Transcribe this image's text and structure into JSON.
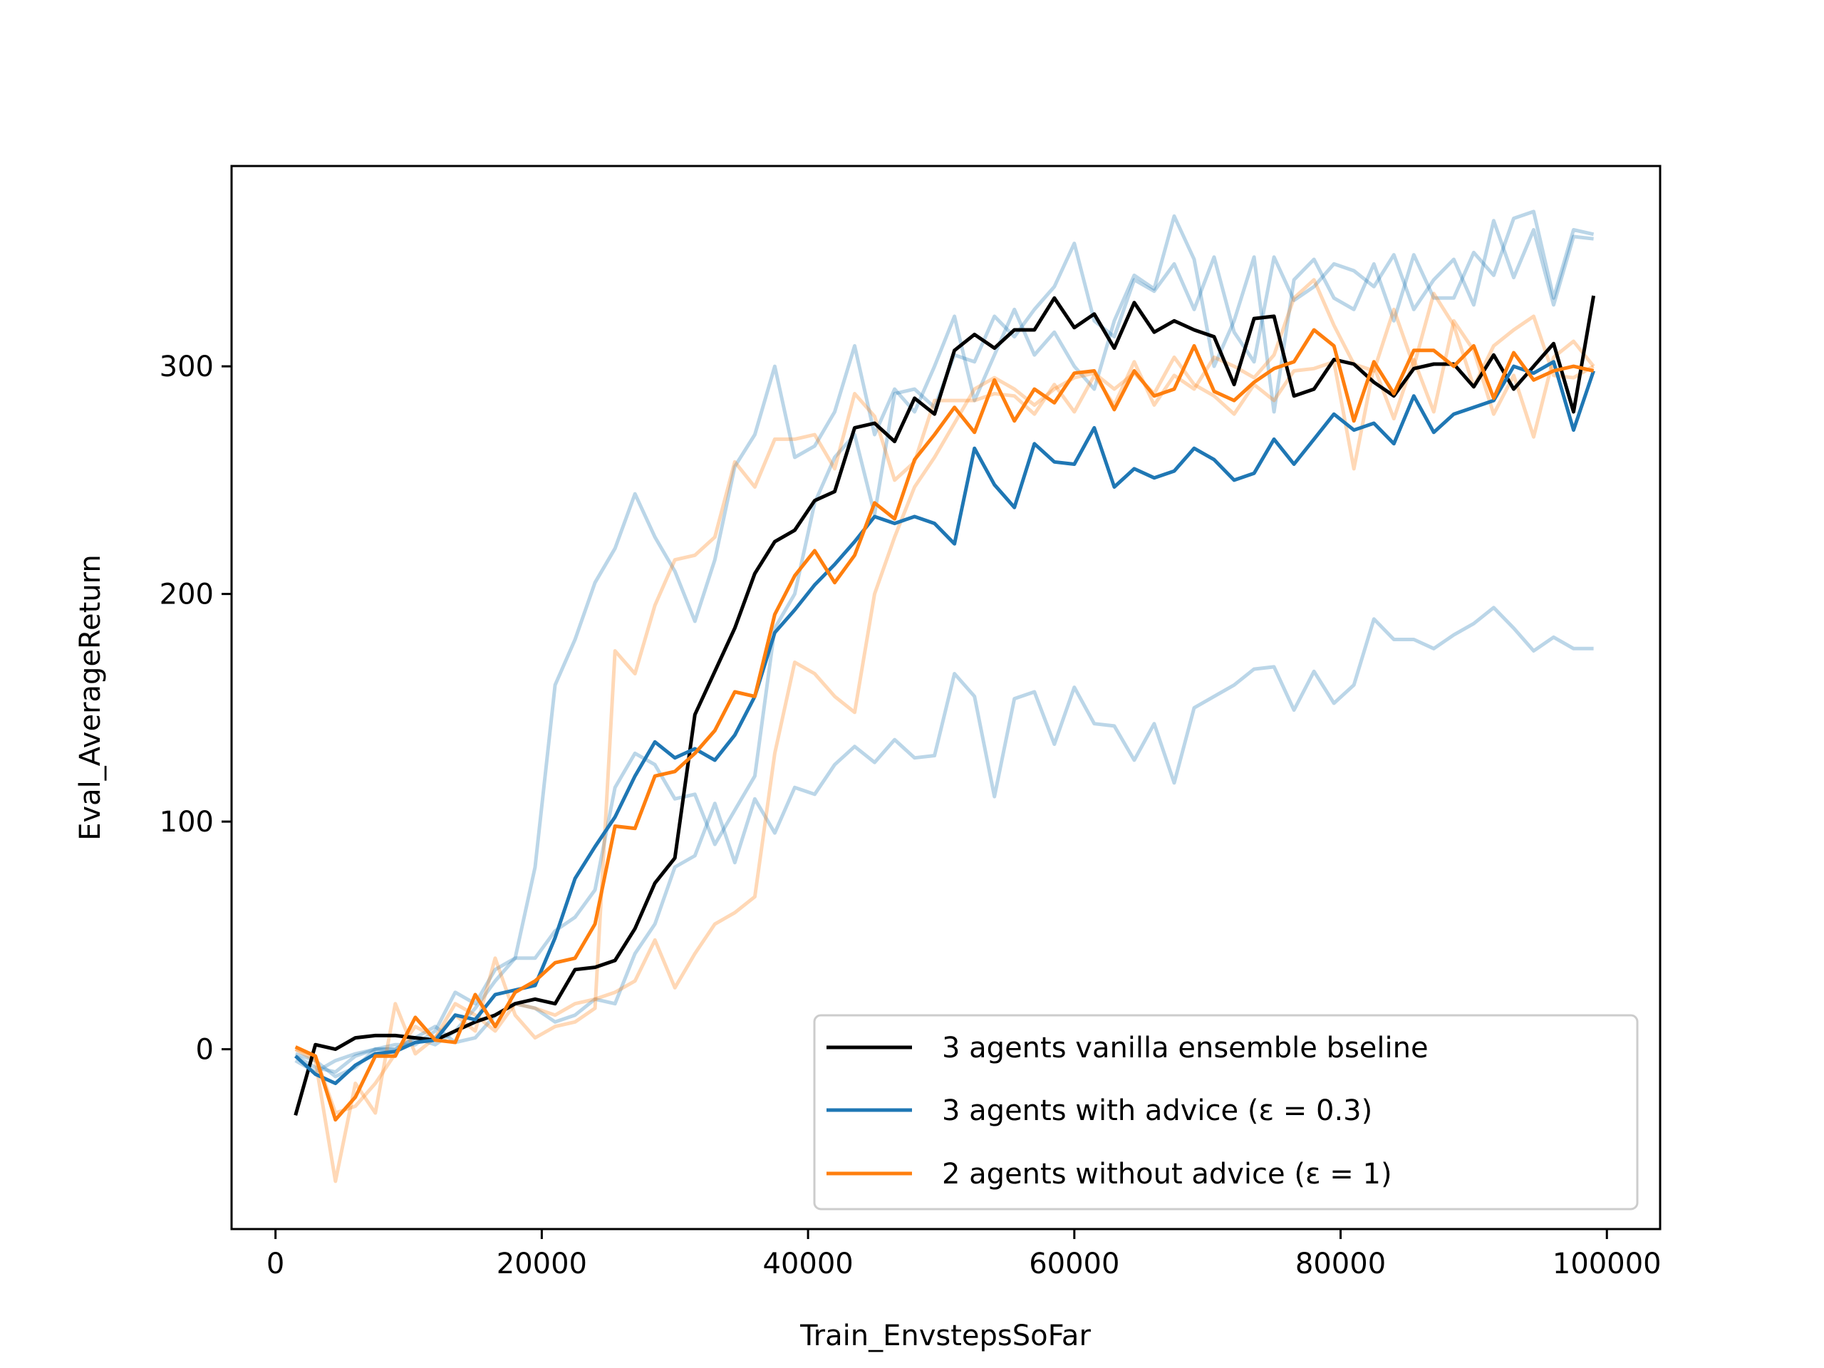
{
  "chart_data": {
    "type": "line",
    "title": "",
    "xlabel": "Train_EnvstepsSoFar",
    "ylabel": "Eval_AverageReturn",
    "xlim": [
      -3300,
      104000
    ],
    "ylim": [
      -79,
      388
    ],
    "xticks": [
      0,
      20000,
      40000,
      60000,
      80000,
      100000
    ],
    "xtick_labels": [
      "0",
      "20000",
      "40000",
      "60000",
      "80000",
      "100000"
    ],
    "yticks": [
      0,
      100,
      200,
      300
    ],
    "ytick_labels": [
      "0",
      "100",
      "200",
      "300"
    ],
    "grid": false,
    "legend_position": "lower-right",
    "x": [
      1500,
      3000,
      4500,
      6000,
      7500,
      9000,
      10500,
      12000,
      13500,
      15000,
      16500,
      18000,
      19500,
      21000,
      22500,
      24000,
      25500,
      27000,
      28500,
      30000,
      31500,
      33000,
      34500,
      36000,
      37500,
      39000,
      40500,
      42000,
      43500,
      45000,
      46500,
      48000,
      49500,
      51000,
      52500,
      54000,
      55500,
      57000,
      58500,
      60000,
      61500,
      63000,
      64500,
      66000,
      67500,
      69000,
      70500,
      72000,
      73500,
      75000,
      76500,
      78000,
      79500,
      81000,
      82500,
      84000,
      85500,
      87000,
      88500,
      90000,
      91500,
      93000,
      94500,
      96000,
      97500,
      99000
    ],
    "series": [
      {
        "name": "3 agents vanilla ensemble bseline",
        "color": "#000000",
        "values": [
          -29,
          2,
          0,
          5,
          6,
          6,
          5,
          4,
          8,
          12,
          15,
          20,
          22,
          20,
          35,
          36,
          39,
          53,
          73,
          84,
          147,
          166,
          185,
          209,
          223,
          228,
          241,
          245,
          273,
          275,
          267,
          286,
          279,
          307,
          314,
          308,
          316,
          316,
          330,
          317,
          323,
          308,
          328,
          315,
          320,
          316,
          313,
          292,
          321,
          322,
          287,
          290,
          303,
          301,
          293,
          287,
          299,
          301,
          301,
          291,
          305,
          290,
          300,
          310,
          280,
          331
        ]
      },
      {
        "name": "3 agents with advice (ε = 0.3)",
        "color": "#1f77b4",
        "values": [
          -3,
          -11,
          -15,
          -7,
          -2,
          -1,
          3,
          4,
          15,
          13,
          24,
          26,
          28,
          49,
          75,
          89,
          102,
          120,
          135,
          128,
          132,
          127,
          138,
          155,
          183,
          193,
          204,
          213,
          223,
          234,
          231,
          234,
          231,
          222,
          264,
          248,
          238,
          266,
          258,
          257,
          273,
          247,
          255,
          251,
          254,
          264,
          259,
          250,
          253,
          268,
          257,
          268,
          279,
          272,
          275,
          266,
          287,
          271,
          279,
          282,
          285,
          300,
          297,
          302,
          272,
          298
        ]
      },
      {
        "name": "2 agents without advice (ε = 1)",
        "color": "#ff7f0e",
        "values": [
          1,
          -3,
          -31,
          -21,
          -3,
          -3,
          14,
          4,
          3,
          24,
          10,
          25,
          30,
          38,
          40,
          55,
          98,
          97,
          120,
          122,
          130,
          140,
          157,
          155,
          191,
          208,
          219,
          205,
          217,
          240,
          233,
          259,
          270,
          282,
          271,
          294,
          276,
          290,
          284,
          297,
          298,
          281,
          298,
          287,
          290,
          309,
          289,
          285,
          293,
          299,
          302,
          316,
          309,
          276,
          302,
          288,
          307,
          307,
          300,
          309,
          286,
          306,
          294,
          298,
          300,
          298
        ]
      },
      {
        "name": "",
        "color": "#1f77b4",
        "faded": true,
        "values": [
          -5,
          -10,
          -5,
          -2,
          0,
          0,
          5,
          2,
          8,
          18,
          30,
          40,
          80,
          160,
          180,
          205,
          220,
          244,
          225,
          210,
          188,
          215,
          256,
          270,
          300,
          260,
          265,
          280,
          309,
          270,
          290,
          280,
          300,
          322,
          285,
          305,
          325,
          305,
          315,
          300,
          290,
          320,
          340,
          334,
          366,
          347,
          300,
          320,
          348,
          280,
          338,
          347,
          330,
          325,
          345,
          320,
          349,
          330,
          330,
          350,
          340,
          365,
          368,
          330,
          360,
          358
        ]
      },
      {
        "name": "",
        "color": "#1f77b4",
        "faded": true,
        "values": [
          -2,
          -5,
          -12,
          -8,
          0,
          2,
          2,
          8,
          25,
          20,
          35,
          40,
          40,
          52,
          58,
          70,
          115,
          130,
          125,
          110,
          112,
          90,
          105,
          120,
          185,
          200,
          240,
          260,
          270,
          235,
          288,
          290,
          282,
          305,
          302,
          322,
          313,
          325,
          335,
          354,
          320,
          313,
          338,
          333,
          345,
          325,
          348,
          315,
          302,
          348,
          329,
          335,
          345,
          342,
          335,
          349,
          325,
          338,
          347,
          327,
          364,
          339,
          360,
          327,
          357,
          356
        ]
      },
      {
        "name": "",
        "color": "#1f77b4",
        "faded": true,
        "values": [
          -3,
          -8,
          -10,
          -3,
          0,
          0,
          5,
          10,
          3,
          5,
          15,
          20,
          18,
          12,
          15,
          22,
          20,
          42,
          55,
          80,
          85,
          108,
          82,
          110,
          95,
          115,
          112,
          125,
          133,
          126,
          136,
          128,
          129,
          165,
          155,
          111,
          154,
          157,
          134,
          159,
          143,
          142,
          127,
          143,
          117,
          150,
          155,
          160,
          167,
          168,
          149,
          166,
          152,
          160,
          189,
          180,
          180,
          176,
          182,
          187,
          194,
          185,
          175,
          181,
          176,
          176
        ]
      },
      {
        "name": "",
        "color": "#ff7f0e",
        "faded": true,
        "values": [
          0,
          -5,
          -58,
          -15,
          -28,
          20,
          -2,
          5,
          15,
          8,
          40,
          15,
          5,
          10,
          12,
          18,
          175,
          165,
          195,
          215,
          217,
          225,
          258,
          247,
          268,
          268,
          270,
          255,
          288,
          278,
          250,
          258,
          285,
          285,
          285,
          288,
          287,
          279,
          292,
          280,
          296,
          283,
          302,
          283,
          296,
          290,
          304,
          300,
          295,
          305,
          330,
          338,
          318,
          301,
          298,
          325,
          300,
          332,
          318,
          291,
          309,
          316,
          322,
          296,
          295,
          300
        ]
      },
      {
        "name": "",
        "color": "#ff7f0e",
        "faded": true,
        "values": [
          0,
          -3,
          -28,
          -25,
          -15,
          -2,
          10,
          5,
          20,
          15,
          8,
          20,
          18,
          15,
          20,
          22,
          25,
          30,
          48,
          27,
          42,
          55,
          60,
          67,
          130,
          170,
          165,
          155,
          148,
          200,
          225,
          247,
          260,
          275,
          290,
          295,
          290,
          283,
          290,
          295,
          297,
          290,
          297,
          288,
          304,
          292,
          287,
          279,
          292,
          285,
          298,
          299,
          302,
          255,
          300,
          277,
          303,
          280,
          320,
          307,
          279,
          296,
          269,
          304,
          311,
          300
        ]
      }
    ]
  }
}
